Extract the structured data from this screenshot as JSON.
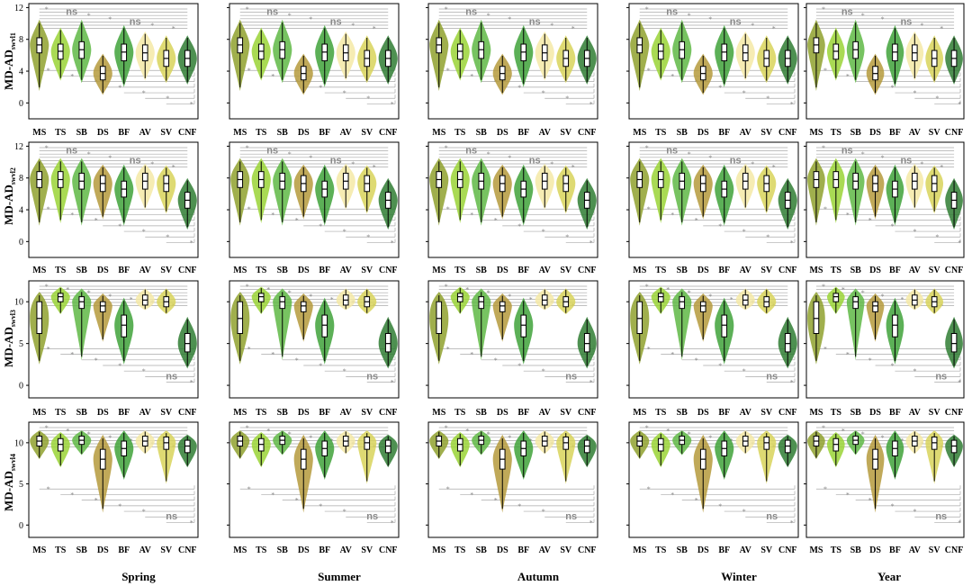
{
  "figure": {
    "seasons": [
      "Spring",
      "Summer",
      "Autumn",
      "Winter",
      "Year"
    ],
    "categories": [
      "MS",
      "TS",
      "SB",
      "DS",
      "BF",
      "AV",
      "SV",
      "CNF"
    ],
    "colors": [
      "#8fa12e",
      "#9ad336",
      "#5fb845",
      "#b59a3c",
      "#3fa23a",
      "#f4e9a6",
      "#d8d35a",
      "#2f7d33"
    ],
    "sig_star": "*",
    "sig_ns": "ns"
  },
  "chart_data": [
    {
      "type": "violin",
      "ylabel": "MD-AD",
      "ylabel_sub": "swvl1",
      "ylim": [
        -2,
        12.5
      ],
      "yticks": [
        0,
        4,
        8,
        12
      ],
      "grid": false,
      "medians": {
        "MS": 7.3,
        "TS": 6.5,
        "SB": 6.7,
        "DS": 3.7,
        "BF": 6.4,
        "AV": 6.3,
        "SV": 5.6,
        "CNF": 5.6
      },
      "quartiles": [
        [
          6.3,
          8.2
        ],
        [
          5.5,
          7.4
        ],
        [
          5.6,
          7.7
        ],
        [
          2.9,
          4.6
        ],
        [
          5.3,
          7.4
        ],
        [
          5.3,
          7.3
        ],
        [
          4.6,
          6.6
        ],
        [
          4.6,
          6.6
        ]
      ],
      "ranges": [
        [
          1.5,
          10.5
        ],
        [
          2.8,
          9.5
        ],
        [
          2.5,
          10.5
        ],
        [
          1.0,
          6.2
        ],
        [
          2.0,
          9.8
        ],
        [
          2.8,
          9.0
        ],
        [
          2.5,
          8.5
        ],
        [
          2.3,
          8.5
        ]
      ]
    },
    {
      "type": "violin",
      "ylabel": "MD-AD",
      "ylabel_sub": "swvl2",
      "ylim": [
        -2,
        12.5
      ],
      "yticks": [
        0,
        4,
        8,
        12
      ],
      "grid": false,
      "medians": {
        "MS": 7.8,
        "TS": 7.8,
        "SB": 7.6,
        "DS": 7.3,
        "BF": 6.6,
        "AV": 7.6,
        "SV": 7.3,
        "CNF": 5.2
      },
      "quartiles": [
        [
          6.8,
          8.8
        ],
        [
          6.8,
          8.8
        ],
        [
          6.6,
          8.6
        ],
        [
          6.3,
          8.3
        ],
        [
          5.6,
          7.6
        ],
        [
          6.6,
          8.6
        ],
        [
          6.3,
          8.3
        ],
        [
          4.2,
          6.2
        ]
      ],
      "ranges": [
        [
          2.0,
          10.5
        ],
        [
          2.3,
          10.5
        ],
        [
          2.0,
          10.5
        ],
        [
          2.8,
          9.7
        ],
        [
          2.0,
          9.7
        ],
        [
          4.0,
          9.8
        ],
        [
          3.5,
          9.6
        ],
        [
          1.5,
          8.0
        ]
      ]
    },
    {
      "type": "violin",
      "ylabel": "MD-AD",
      "ylabel_sub": "swvl3",
      "ylim": [
        -1.5,
        12.5
      ],
      "yticks": [
        0,
        5,
        10
      ],
      "grid": false,
      "medians": {
        "MS": 8.0,
        "TS": 10.6,
        "SB": 10.0,
        "DS": 9.5,
        "BF": 7.2,
        "AV": 10.2,
        "SV": 10.0,
        "CNF": 5.0
      },
      "quartiles": [
        [
          6.2,
          10.0
        ],
        [
          10.0,
          11.0
        ],
        [
          9.2,
          10.6
        ],
        [
          8.8,
          10.0
        ],
        [
          5.8,
          8.4
        ],
        [
          9.6,
          10.8
        ],
        [
          9.4,
          10.6
        ],
        [
          4.0,
          6.2
        ]
      ],
      "ranges": [
        [
          2.5,
          11.2
        ],
        [
          8.5,
          11.8
        ],
        [
          3.0,
          11.6
        ],
        [
          5.2,
          11.0
        ],
        [
          2.5,
          10.5
        ],
        [
          9.0,
          11.6
        ],
        [
          8.5,
          11.6
        ],
        [
          2.0,
          8.2
        ]
      ]
    },
    {
      "type": "violin",
      "ylabel": "MD-AD",
      "ylabel_sub": "swvl4",
      "ylim": [
        -1.5,
        12.5
      ],
      "yticks": [
        0,
        5,
        10
      ],
      "grid": false,
      "medians": {
        "MS": 10.2,
        "TS": 9.8,
        "SB": 10.3,
        "DS": 8.0,
        "BF": 9.3,
        "AV": 10.2,
        "SV": 10.0,
        "CNF": 9.6
      },
      "quartiles": [
        [
          9.6,
          10.8
        ],
        [
          9.0,
          10.5
        ],
        [
          9.8,
          10.8
        ],
        [
          6.8,
          9.2
        ],
        [
          8.4,
          10.2
        ],
        [
          9.6,
          10.8
        ],
        [
          9.2,
          10.7
        ],
        [
          8.8,
          10.3
        ]
      ],
      "ranges": [
        [
          8.0,
          11.5
        ],
        [
          7.0,
          11.3
        ],
        [
          8.5,
          11.5
        ],
        [
          1.5,
          11.0
        ],
        [
          5.5,
          11.5
        ],
        [
          8.6,
          11.5
        ],
        [
          5.0,
          11.5
        ],
        [
          7.0,
          11.0
        ]
      ]
    }
  ]
}
